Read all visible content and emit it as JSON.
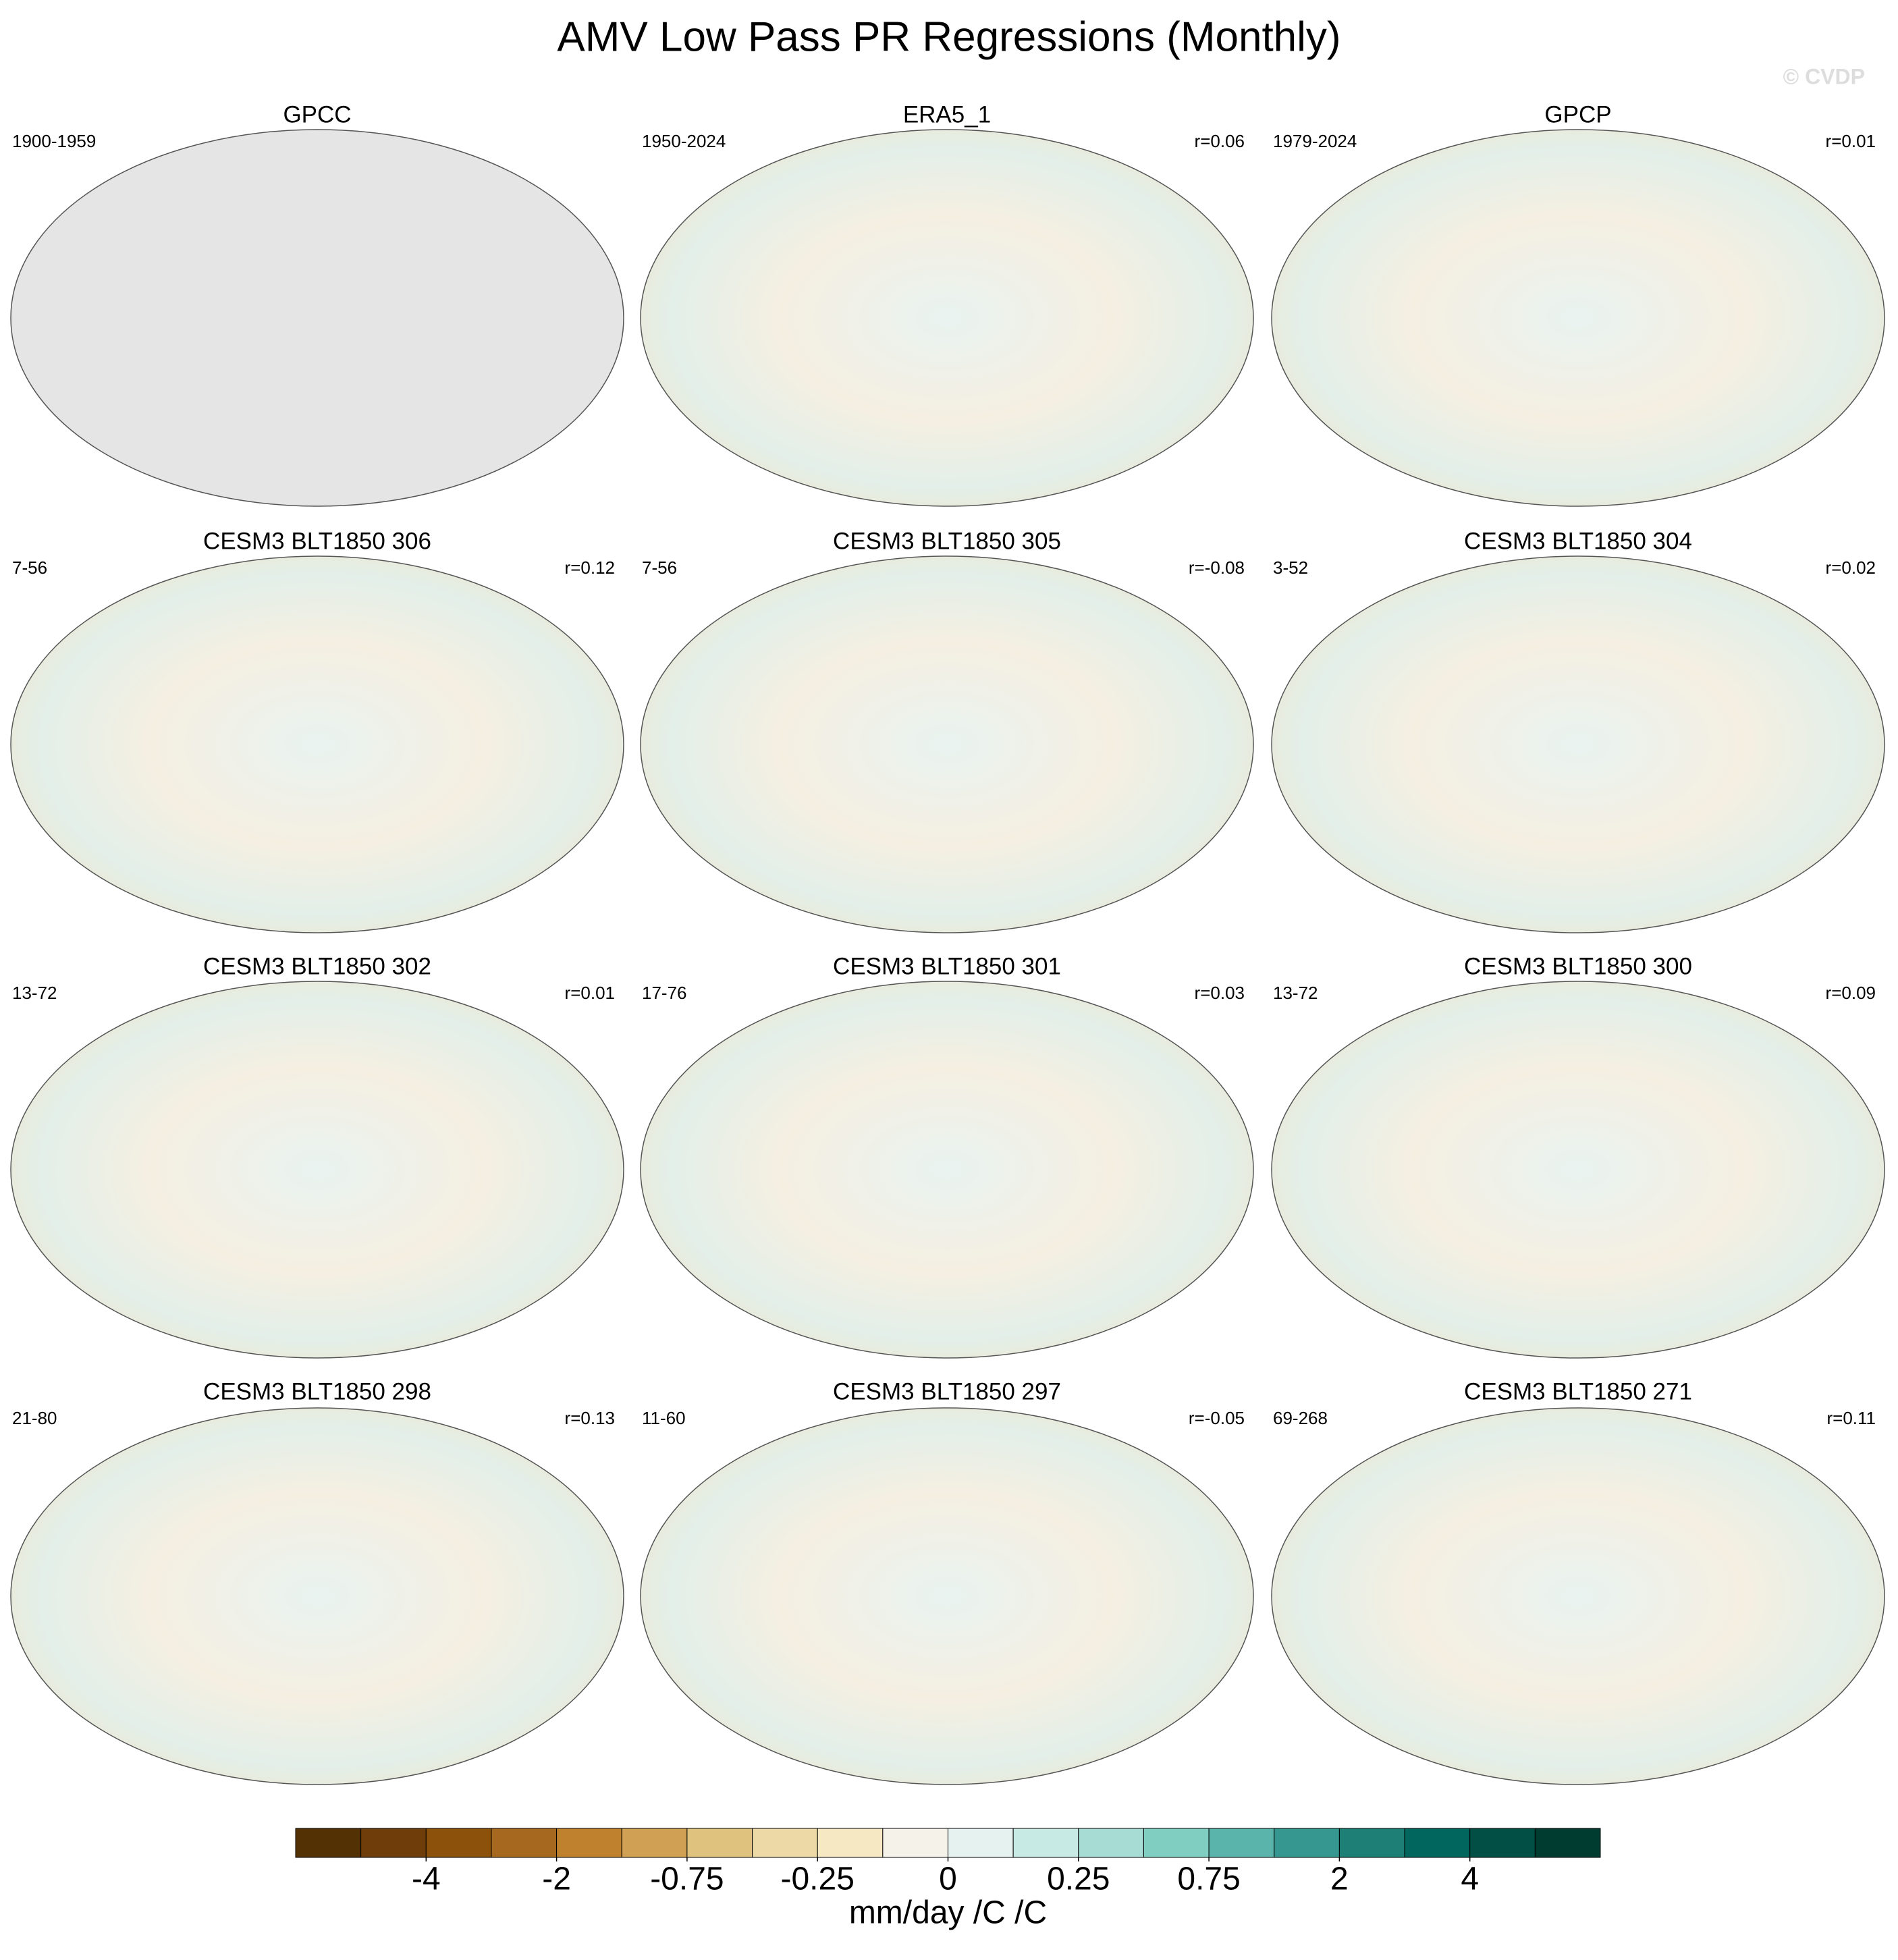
{
  "title": "AMV Low Pass PR Regressions (Monthly)",
  "watermark": "© CVDP",
  "panels": [
    {
      "title": "GPCC",
      "period": "1900-1959"
    },
    {
      "title": "ERA5_1",
      "period": "1950-2024",
      "r": "r=0.06"
    },
    {
      "title": "GPCP",
      "period": "1979-2024",
      "r": "r=0.01"
    },
    {
      "title": "CESM3 BLT1850 306",
      "period": "7-56",
      "r": "r=0.12"
    },
    {
      "title": "CESM3 BLT1850 305",
      "period": "7-56",
      "r": "r=-0.08"
    },
    {
      "title": "CESM3 BLT1850 304",
      "period": "3-52",
      "r": "r=0.02"
    },
    {
      "title": "CESM3 BLT1850 302",
      "period": "13-72",
      "r": "r=0.01"
    },
    {
      "title": "CESM3 BLT1850 301",
      "period": "17-76",
      "r": "r=0.03"
    },
    {
      "title": "CESM3 BLT1850 300",
      "period": "13-72",
      "r": "r=0.09"
    },
    {
      "title": "CESM3 BLT1850 298",
      "period": "21-80",
      "r": "r=0.13"
    },
    {
      "title": "CESM3 BLT1850 297",
      "period": "11-60",
      "r": "r=-0.05"
    },
    {
      "title": "CESM3 BLT1850 271",
      "period": "69-268",
      "r": "r=0.11"
    }
  ],
  "colorbar": {
    "label": "mm/day /C /C",
    "levels": [
      -5,
      -4,
      -3,
      -2,
      -1,
      -0.75,
      -0.5,
      -0.25,
      -0.1,
      0,
      0.1,
      0.25,
      0.5,
      0.75,
      1,
      2,
      3,
      4,
      5
    ],
    "ticks": [
      -4,
      -2,
      -0.75,
      -0.25,
      0,
      0.25,
      0.75,
      2,
      4
    ],
    "colors": [
      "#543005",
      "#6e3d0a",
      "#8c510a",
      "#a6681e",
      "#bf812d",
      "#d0a055",
      "#dfc27d",
      "#ecd9a6",
      "#f6e8c3",
      "#f5f2ea",
      "#e6f2ef",
      "#c7eae5",
      "#a6dcd3",
      "#80cdc1",
      "#5ab4ac",
      "#35978f",
      "#1d7f75",
      "#01665e",
      "#024f45",
      "#003c30"
    ]
  }
}
